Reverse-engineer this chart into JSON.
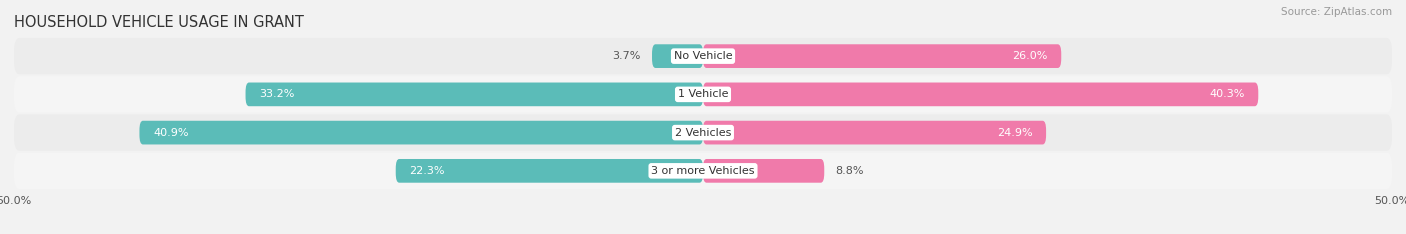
{
  "title": "HOUSEHOLD VEHICLE USAGE IN GRANT",
  "source": "Source: ZipAtlas.com",
  "categories": [
    "No Vehicle",
    "1 Vehicle",
    "2 Vehicles",
    "3 or more Vehicles"
  ],
  "owner_values": [
    3.7,
    33.2,
    40.9,
    22.3
  ],
  "renter_values": [
    26.0,
    40.3,
    24.9,
    8.8
  ],
  "owner_color": "#5bbcb8",
  "renter_color": "#f07aaa",
  "xlim": [
    -50,
    50
  ],
  "bar_height": 0.62,
  "row_bg_color": "#ebebeb",
  "row_bg_color2": "#f5f5f5",
  "bg_color": "#f2f2f2",
  "title_fontsize": 10.5,
  "source_fontsize": 7.5,
  "value_fontsize": 8,
  "category_fontsize": 8
}
